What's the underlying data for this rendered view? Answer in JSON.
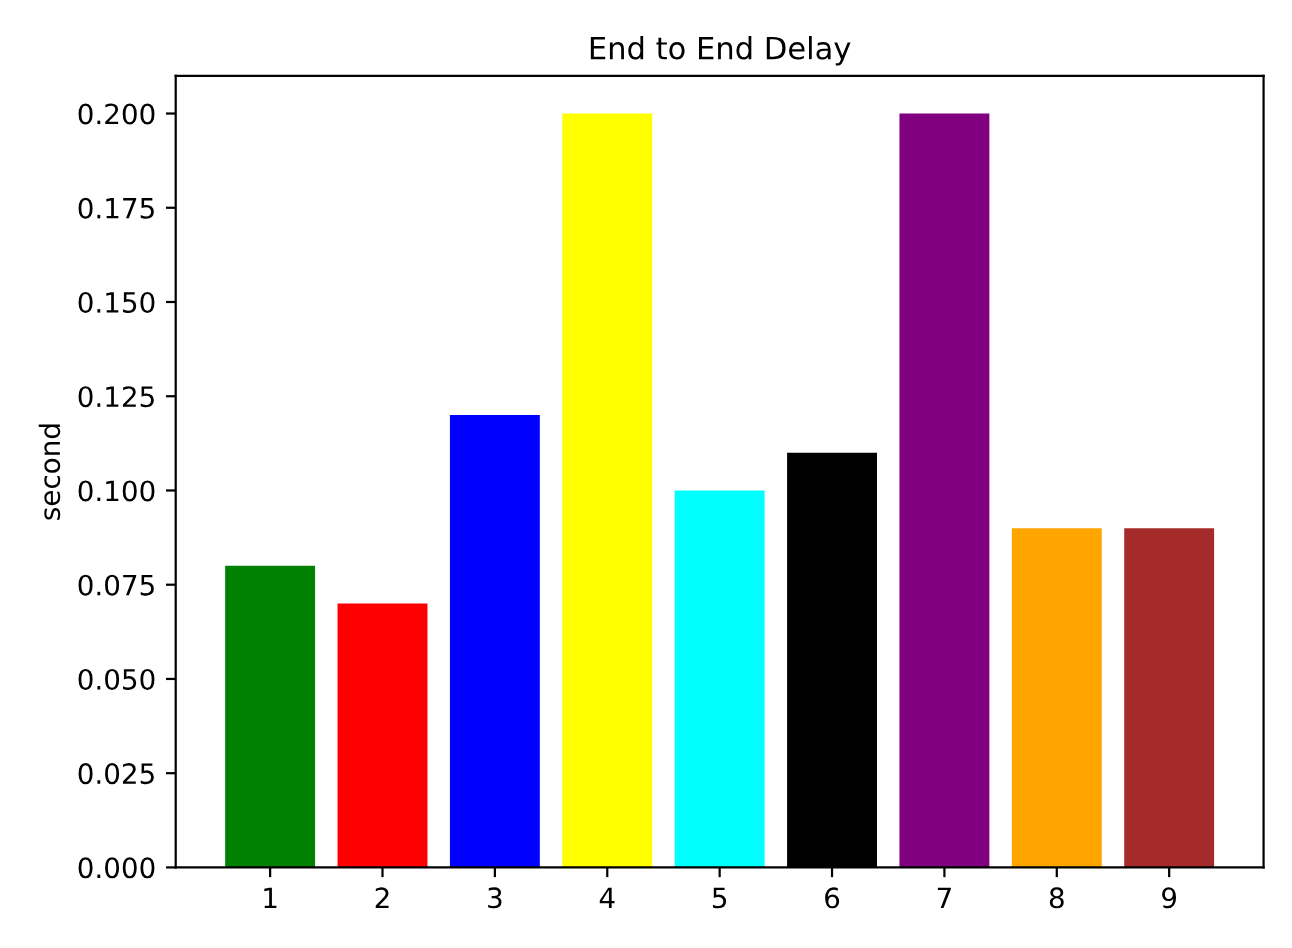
{
  "chart_data": {
    "type": "bar",
    "title": "End to End Delay",
    "ylabel": "second",
    "categories": [
      "1",
      "2",
      "3",
      "4",
      "5",
      "6",
      "7",
      "8",
      "9"
    ],
    "values": [
      0.08,
      0.07,
      0.12,
      0.2,
      0.1,
      0.11,
      0.2,
      0.09,
      0.09
    ],
    "colors": [
      "#008000",
      "#ff0000",
      "#0000ff",
      "#ffff00",
      "#00ffff",
      "#000000",
      "#800080",
      "#ffa500",
      "#a52a2a"
    ],
    "ylim": [
      0,
      0.21
    ],
    "yticks": [
      {
        "value": 0,
        "label": "0.000"
      },
      {
        "value": 0.025,
        "label": "0.025"
      },
      {
        "value": 0.05,
        "label": "0.050"
      },
      {
        "value": 0.075,
        "label": "0.075"
      },
      {
        "value": 0.1,
        "label": "0.100"
      },
      {
        "value": 0.125,
        "label": "0.125"
      },
      {
        "value": 0.15,
        "label": "0.150"
      },
      {
        "value": 0.175,
        "label": "0.175"
      },
      {
        "value": 0.2,
        "label": "0.200"
      }
    ],
    "grid": false,
    "legend": false
  }
}
